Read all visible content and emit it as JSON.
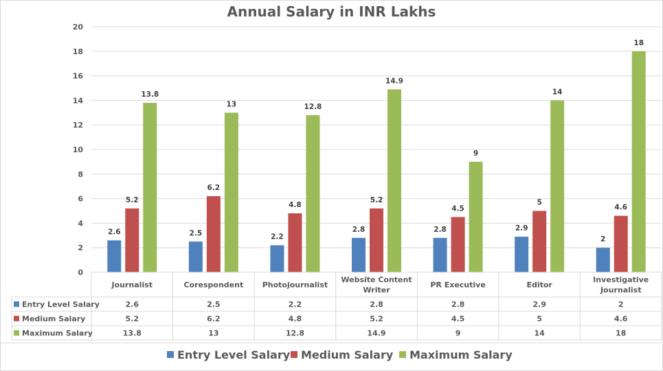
{
  "chart_data": {
    "type": "bar",
    "title": "Annual Salary in INR Lakhs",
    "xlabel": "",
    "ylabel": "",
    "ylim": [
      0,
      20
    ],
    "yticks": [
      0,
      2,
      4,
      6,
      8,
      10,
      12,
      14,
      16,
      18,
      20
    ],
    "grid": true,
    "legend_position": "bottom",
    "data_table": true,
    "categories": [
      [
        "Journalist"
      ],
      [
        "Corespondent"
      ],
      [
        "Photojournalist"
      ],
      [
        "Website Content",
        "Writer"
      ],
      [
        "PR Executive"
      ],
      [
        "Editor"
      ],
      [
        "Investigative",
        "Journalist"
      ]
    ],
    "series": [
      {
        "name": "Entry Level Salary",
        "color": "#4f81bd",
        "values": [
          2.6,
          2.5,
          2.2,
          2.8,
          2.8,
          2.9,
          2
        ]
      },
      {
        "name": "Medium Salary",
        "color": "#c0504d",
        "values": [
          5.2,
          6.2,
          4.8,
          5.2,
          4.5,
          5,
          4.6
        ]
      },
      {
        "name": "Maximum Salary",
        "color": "#9bbb59",
        "values": [
          13.8,
          13,
          12.8,
          14.9,
          9,
          14,
          18
        ]
      }
    ]
  }
}
